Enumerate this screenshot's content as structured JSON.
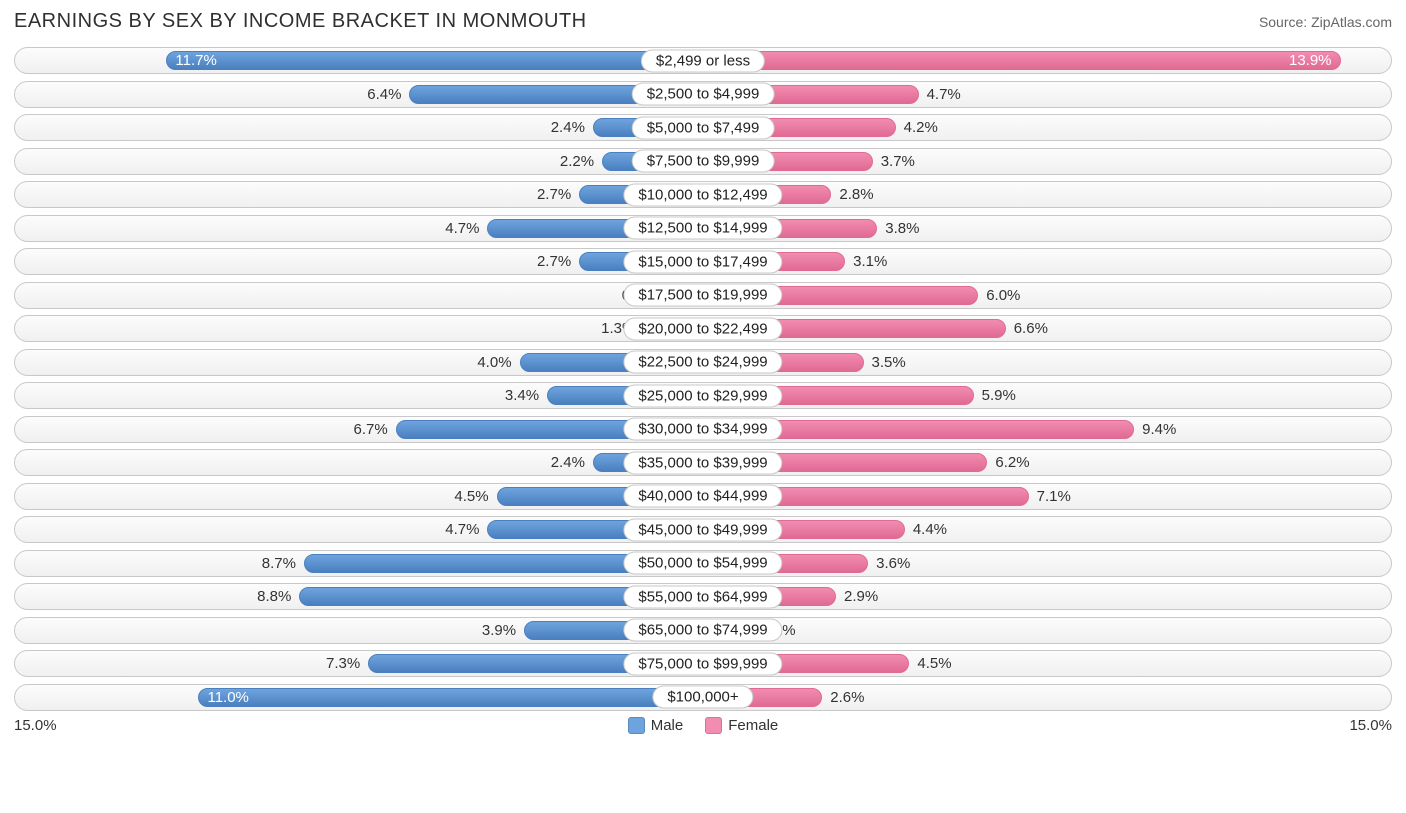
{
  "title": "EARNINGS BY SEX BY INCOME BRACKET IN MONMOUTH",
  "source_prefix": "Source: ",
  "source_name": "ZipAtlas.com",
  "chart": {
    "type": "diverging-bar",
    "max_pct": 15.0,
    "axis_left_label": "15.0%",
    "axis_right_label": "15.0%",
    "inside_label_threshold_pct": 10.0,
    "colors": {
      "male_fill": "#6ea3dd",
      "male_border": "#4a80c0",
      "female_fill": "#f28cb1",
      "female_border": "#e06a94",
      "row_border": "#c8c8c8",
      "background": "#ffffff",
      "text": "#333333"
    },
    "legend": [
      {
        "label": "Male",
        "color": "#6ea3dd"
      },
      {
        "label": "Female",
        "color": "#f28cb1"
      }
    ],
    "rows": [
      {
        "category": "$2,499 or less",
        "male": 11.7,
        "male_label": "11.7%",
        "female": 13.9,
        "female_label": "13.9%"
      },
      {
        "category": "$2,500 to $4,999",
        "male": 6.4,
        "male_label": "6.4%",
        "female": 4.7,
        "female_label": "4.7%"
      },
      {
        "category": "$5,000 to $7,499",
        "male": 2.4,
        "male_label": "2.4%",
        "female": 4.2,
        "female_label": "4.2%"
      },
      {
        "category": "$7,500 to $9,999",
        "male": 2.2,
        "male_label": "2.2%",
        "female": 3.7,
        "female_label": "3.7%"
      },
      {
        "category": "$10,000 to $12,499",
        "male": 2.7,
        "male_label": "2.7%",
        "female": 2.8,
        "female_label": "2.8%"
      },
      {
        "category": "$12,500 to $14,999",
        "male": 4.7,
        "male_label": "4.7%",
        "female": 3.8,
        "female_label": "3.8%"
      },
      {
        "category": "$15,000 to $17,499",
        "male": 2.7,
        "male_label": "2.7%",
        "female": 3.1,
        "female_label": "3.1%"
      },
      {
        "category": "$17,500 to $19,999",
        "male": 0.67,
        "male_label": "0.67%",
        "female": 6.0,
        "female_label": "6.0%"
      },
      {
        "category": "$20,000 to $22,499",
        "male": 1.3,
        "male_label": "1.3%",
        "female": 6.6,
        "female_label": "6.6%"
      },
      {
        "category": "$22,500 to $24,999",
        "male": 4.0,
        "male_label": "4.0%",
        "female": 3.5,
        "female_label": "3.5%"
      },
      {
        "category": "$25,000 to $29,999",
        "male": 3.4,
        "male_label": "3.4%",
        "female": 5.9,
        "female_label": "5.9%"
      },
      {
        "category": "$30,000 to $34,999",
        "male": 6.7,
        "male_label": "6.7%",
        "female": 9.4,
        "female_label": "9.4%"
      },
      {
        "category": "$35,000 to $39,999",
        "male": 2.4,
        "male_label": "2.4%",
        "female": 6.2,
        "female_label": "6.2%"
      },
      {
        "category": "$40,000 to $44,999",
        "male": 4.5,
        "male_label": "4.5%",
        "female": 7.1,
        "female_label": "7.1%"
      },
      {
        "category": "$45,000 to $49,999",
        "male": 4.7,
        "male_label": "4.7%",
        "female": 4.4,
        "female_label": "4.4%"
      },
      {
        "category": "$50,000 to $54,999",
        "male": 8.7,
        "male_label": "8.7%",
        "female": 3.6,
        "female_label": "3.6%"
      },
      {
        "category": "$55,000 to $64,999",
        "male": 8.8,
        "male_label": "8.8%",
        "female": 2.9,
        "female_label": "2.9%"
      },
      {
        "category": "$65,000 to $74,999",
        "male": 3.9,
        "male_label": "3.9%",
        "female": 1.1,
        "female_label": "1.1%"
      },
      {
        "category": "$75,000 to $99,999",
        "male": 7.3,
        "male_label": "7.3%",
        "female": 4.5,
        "female_label": "4.5%"
      },
      {
        "category": "$100,000+",
        "male": 11.0,
        "male_label": "11.0%",
        "female": 2.6,
        "female_label": "2.6%"
      }
    ]
  }
}
